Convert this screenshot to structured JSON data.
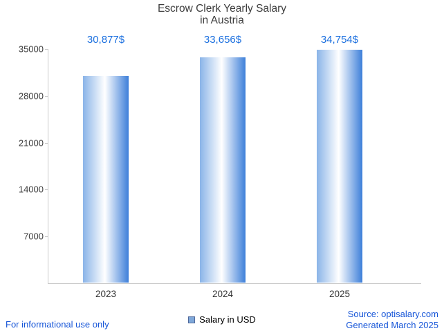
{
  "title": {
    "line1": "Escrow Clerk Yearly Salary",
    "line2": "in Austria"
  },
  "legend": {
    "label": "Salary in USD"
  },
  "footer": {
    "disclaimer": "For informational use only",
    "source": "Source: optisalary.com",
    "generated": "Generated March 2025"
  },
  "colors": {
    "value_label": "#1a6fdf",
    "footer_text": "#1756d8",
    "axis": "#c9c9c9",
    "tick_text": "#3d3d3d",
    "bar_gradient_left": "#8ab4e8",
    "bar_gradient_mid": "#ffffff",
    "bar_gradient_right": "#3d7fd9"
  },
  "chart_data": {
    "type": "bar",
    "title": "Escrow Clerk Yearly Salary in Austria",
    "categories": [
      "2023",
      "2024",
      "2025"
    ],
    "values": [
      30877,
      33656,
      34754
    ],
    "value_labels": [
      "30,877$",
      "33,656$",
      "34,754$"
    ],
    "series_name": "Salary in USD",
    "xlabel": "",
    "ylabel": "",
    "ylim": [
      0,
      35000
    ],
    "yticks": [
      7000,
      14000,
      21000,
      28000,
      35000
    ],
    "grid": false,
    "legend_position": "bottom"
  }
}
